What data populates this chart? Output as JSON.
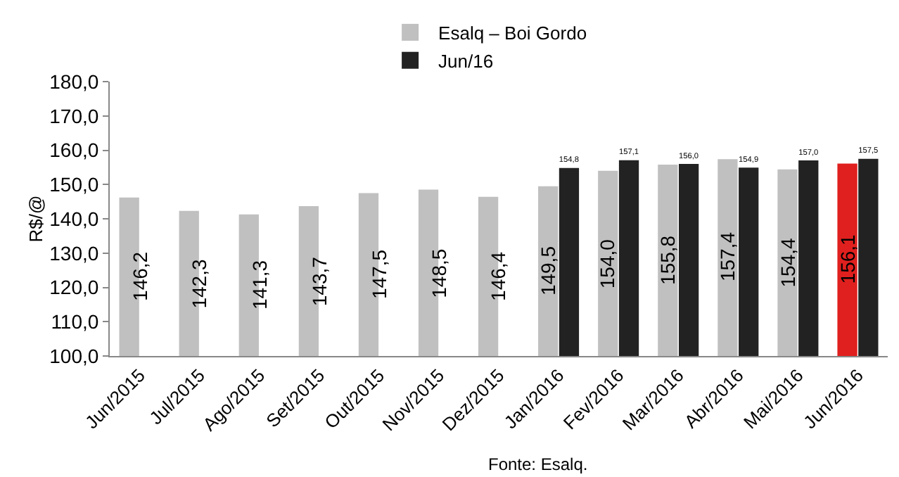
{
  "chart_data": {
    "type": "bar",
    "ylabel": "R$/@",
    "categories": [
      "Jun/2015",
      "Jul/2015",
      "Ago/2015",
      "Set/2015",
      "Out/2015",
      "Nov/2015",
      "Dez/2015",
      "Jan/2016",
      "Fev/2016",
      "Mar/2016",
      "Abr/2016",
      "Mai/2016",
      "Jun/2016"
    ],
    "series": [
      {
        "name": "Esalq – Boi Gordo",
        "color": "#c0c0c0",
        "colors": [
          null,
          null,
          null,
          null,
          null,
          null,
          null,
          null,
          null,
          null,
          null,
          null,
          "#e0201e"
        ],
        "values": [
          146.2,
          142.3,
          141.3,
          143.7,
          147.5,
          148.5,
          146.4,
          149.5,
          154.0,
          155.8,
          157.4,
          154.4,
          156.1
        ],
        "value_labels": [
          "146,2",
          "142,3",
          "141,3",
          "143,7",
          "147,5",
          "148,5",
          "146,4",
          "149,5",
          "154,0",
          "155,8",
          "157,4",
          "154,4",
          "156,1"
        ]
      },
      {
        "name": "Jun/16",
        "color": "#222222",
        "values": [
          null,
          null,
          null,
          null,
          null,
          null,
          null,
          154.8,
          157.1,
          156.0,
          154.9,
          157.0,
          157.5
        ],
        "value_labels": [
          null,
          null,
          null,
          null,
          null,
          null,
          null,
          "154,8",
          "157,1",
          "156,0",
          "154,9",
          "157,0",
          "157,5"
        ]
      }
    ],
    "ylim": [
      100,
      180
    ],
    "yticks": [
      {
        "value": 100,
        "label": "100,0"
      },
      {
        "value": 110,
        "label": "110,0"
      },
      {
        "value": 120,
        "label": "120,0"
      },
      {
        "value": 130,
        "label": "130,0"
      },
      {
        "value": 140,
        "label": "140,0"
      },
      {
        "value": 150,
        "label": "150,0"
      },
      {
        "value": 160,
        "label": "160,0"
      },
      {
        "value": 170,
        "label": "170,0"
      },
      {
        "value": 180,
        "label": "180,0"
      }
    ],
    "grid": false,
    "legend": "top",
    "annotations": [
      "Fonte: Esalq."
    ]
  }
}
